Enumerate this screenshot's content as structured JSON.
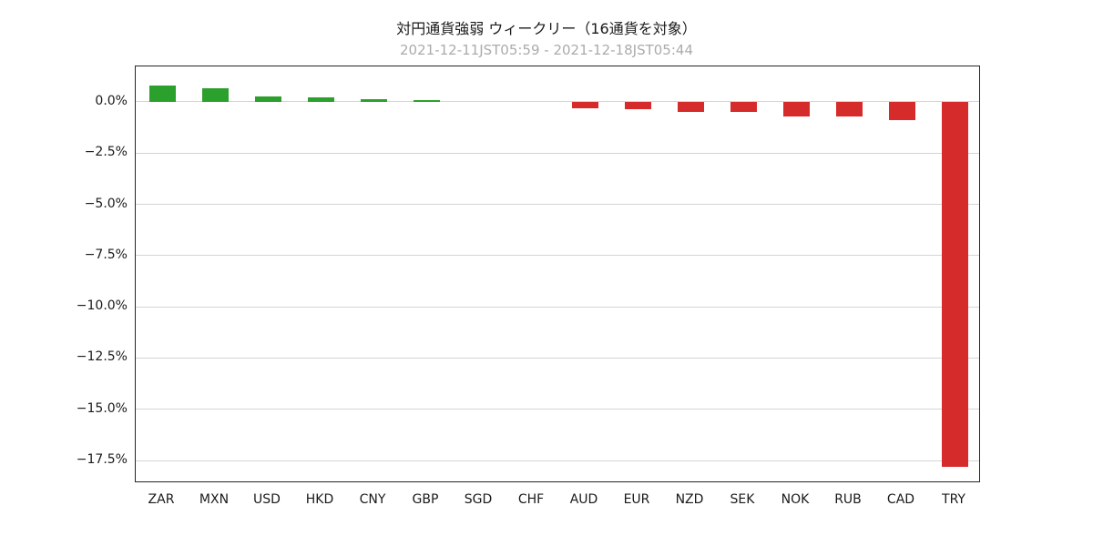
{
  "header": {
    "title": "対円通貨強弱 ウィークリー（16通貨を対象）",
    "subtitle": "2021-12-11JST05:59 - 2021-12-18JST05:44"
  },
  "chart_data": {
    "type": "bar",
    "title": "対円通貨強弱 ウィークリー（16通貨を対象）",
    "subtitle": "2021-12-11JST05:59 - 2021-12-18JST05:44",
    "categories": [
      "ZAR",
      "MXN",
      "USD",
      "HKD",
      "CNY",
      "GBP",
      "SGD",
      "CHF",
      "AUD",
      "EUR",
      "NZD",
      "SEK",
      "NOK",
      "RUB",
      "CAD",
      "TRY"
    ],
    "values": [
      0.8,
      0.65,
      0.25,
      0.2,
      0.15,
      0.08,
      0.0,
      0.0,
      -0.3,
      -0.35,
      -0.5,
      -0.5,
      -0.7,
      -0.7,
      -0.9,
      -17.8
    ],
    "xlabel": "",
    "ylabel": "",
    "ylim": [
      -18.61,
      1.73
    ],
    "yticks": [
      {
        "value": 0.0,
        "label": "0.0%"
      },
      {
        "value": -2.5,
        "label": "−2.5%"
      },
      {
        "value": -5.0,
        "label": "−5.0%"
      },
      {
        "value": -7.5,
        "label": "−7.5%"
      },
      {
        "value": -10.0,
        "label": "−10.0%"
      },
      {
        "value": -12.5,
        "label": "−12.5%"
      },
      {
        "value": -15.0,
        "label": "−15.0%"
      },
      {
        "value": -17.5,
        "label": "−17.5%"
      }
    ],
    "grid": true,
    "legend": "none",
    "colors": {
      "positive": "#2ca02c",
      "negative": "#d62b2b"
    }
  }
}
